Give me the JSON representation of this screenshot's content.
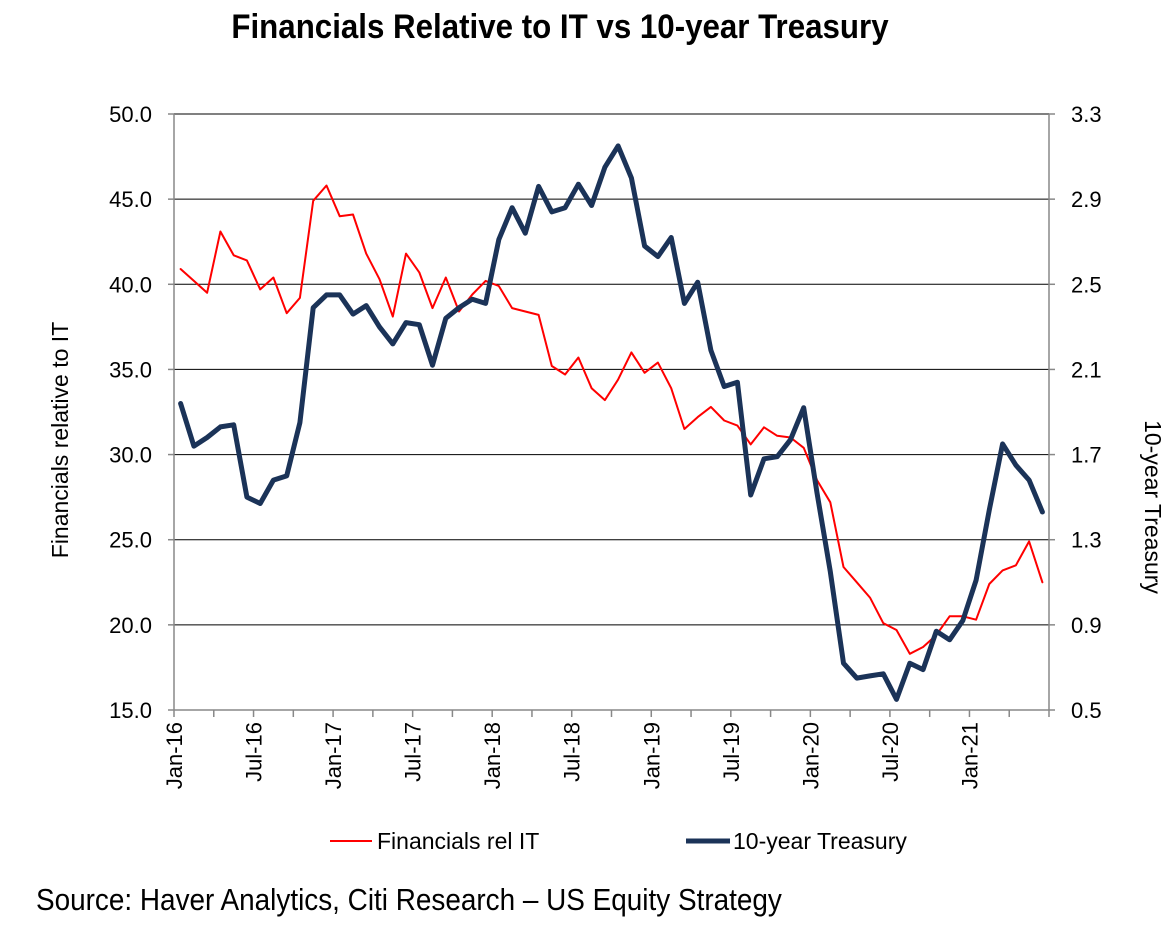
{
  "chart_data": {
    "type": "line",
    "title": "Financials Relative to IT vs 10-year Treasury",
    "source": "Source: Haver Analytics, Citi Research – US Equity Strategy",
    "y_left": {
      "label": "Financials relative to IT",
      "min": 15,
      "max": 50,
      "ticks": [
        "15.0",
        "20.0",
        "25.0",
        "30.0",
        "35.0",
        "40.0",
        "45.0",
        "50.0"
      ]
    },
    "y_right": {
      "label": "10-year Treasury",
      "min": 0.5,
      "max": 3.3,
      "ticks": [
        "0.5",
        "0.9",
        "1.3",
        "1.7",
        "2.1",
        "2.5",
        "2.9",
        "3.3"
      ]
    },
    "x_tick_labels": [
      "Jan-16",
      "Jul-16",
      "Jan-17",
      "Jul-17",
      "Jan-18",
      "Jul-18",
      "Jan-19",
      "Jul-19",
      "Jan-20",
      "Jul-20",
      "Jan-21"
    ],
    "x_tick_month_index": [
      0,
      6,
      12,
      18,
      24,
      30,
      36,
      42,
      48,
      54,
      60
    ],
    "grid": "horizontal",
    "legend_position": "bottom",
    "series": [
      {
        "name": "Financials rel IT",
        "axis": "left",
        "color": "#ff0000",
        "values": [
          40.9,
          40.2,
          39.5,
          43.1,
          41.7,
          41.4,
          39.7,
          40.4,
          38.3,
          39.2,
          44.9,
          45.8,
          44.0,
          44.1,
          41.8,
          40.3,
          38.1,
          41.8,
          40.7,
          38.6,
          40.4,
          38.4,
          39.4,
          40.2,
          39.9,
          38.6,
          38.4,
          38.2,
          35.2,
          34.7,
          35.7,
          33.9,
          33.2,
          34.4,
          36.0,
          34.8,
          35.4,
          33.9,
          31.5,
          32.2,
          32.8,
          32.0,
          31.7,
          30.6,
          31.6,
          31.1,
          31.0,
          30.4,
          28.5,
          27.2,
          23.4,
          22.5,
          21.6,
          20.1,
          19.7,
          18.3,
          18.7,
          19.4,
          20.5,
          20.5,
          20.3,
          22.4,
          23.2,
          23.5,
          24.9,
          22.5
        ]
      },
      {
        "name": "10-year Treasury",
        "axis": "right",
        "color": "#1b3358",
        "values": [
          1.94,
          1.74,
          1.78,
          1.83,
          1.84,
          1.5,
          1.47,
          1.58,
          1.6,
          1.85,
          2.39,
          2.45,
          2.45,
          2.36,
          2.4,
          2.3,
          2.22,
          2.32,
          2.31,
          2.12,
          2.34,
          2.39,
          2.43,
          2.41,
          2.71,
          2.86,
          2.74,
          2.96,
          2.84,
          2.86,
          2.97,
          2.87,
          3.05,
          3.15,
          3.0,
          2.68,
          2.63,
          2.72,
          2.41,
          2.51,
          2.19,
          2.02,
          2.04,
          1.51,
          1.68,
          1.69,
          1.77,
          1.92,
          1.52,
          1.15,
          0.72,
          0.65,
          0.66,
          0.67,
          0.55,
          0.72,
          0.69,
          0.87,
          0.83,
          0.92,
          1.11,
          1.44,
          1.75,
          1.65,
          1.58,
          1.43
        ]
      }
    ]
  }
}
